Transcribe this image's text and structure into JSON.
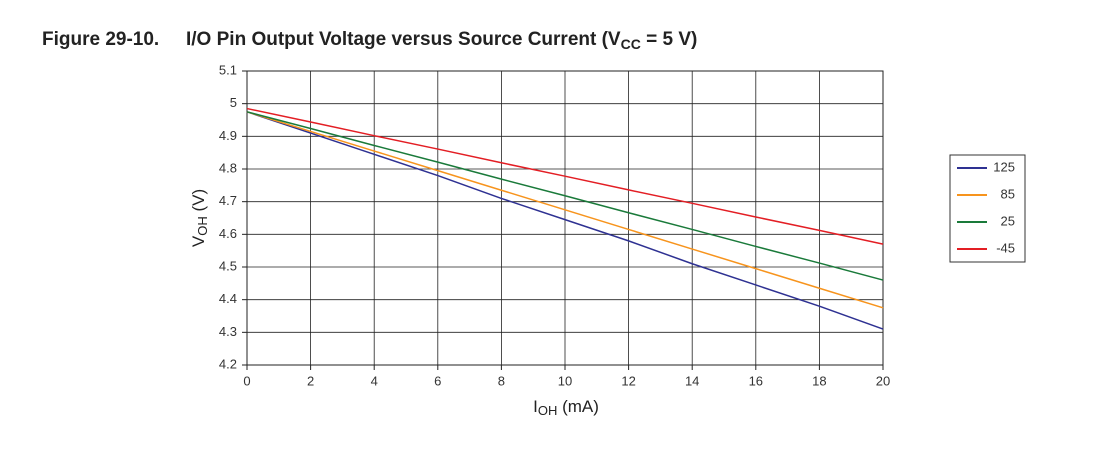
{
  "chart_data": {
    "type": "line",
    "figure_label": "Figure 29-10.",
    "title": [
      "I/O Pin Output Voltage versus Source Current (V",
      "CC",
      " = 5 V)"
    ],
    "y_label": [
      "V",
      "OH",
      " (V)"
    ],
    "x_label": [
      "I",
      "OH",
      " (mA)"
    ],
    "x": [
      0,
      2,
      4,
      6,
      8,
      10,
      12,
      14,
      16,
      18,
      20
    ],
    "xlim": [
      0,
      20
    ],
    "xticks": [
      0,
      2,
      4,
      6,
      8,
      10,
      12,
      14,
      16,
      18,
      20
    ],
    "ylim": [
      4.2,
      5.1
    ],
    "yticks": [
      4.2,
      4.3,
      4.4,
      4.5,
      4.6,
      4.7,
      4.8,
      4.9,
      5,
      5.1
    ],
    "grid": true,
    "legend": "right",
    "series": [
      {
        "name": "125",
        "color": "#2e3192",
        "values": [
          4.975,
          4.91,
          4.845,
          4.78,
          4.71,
          4.645,
          4.58,
          4.51,
          4.445,
          4.38,
          4.31
        ]
      },
      {
        "name": "85",
        "color": "#f7941d",
        "values": [
          4.975,
          4.915,
          4.855,
          4.795,
          4.735,
          4.675,
          4.615,
          4.555,
          4.495,
          4.435,
          4.375
        ]
      },
      {
        "name": "25",
        "color": "#1a7a3a",
        "values": [
          4.975,
          4.924,
          4.872,
          4.821,
          4.769,
          4.718,
          4.666,
          4.615,
          4.563,
          4.512,
          4.46
        ]
      },
      {
        "name": "-45",
        "color": "#e31e24",
        "values": [
          4.985,
          4.944,
          4.902,
          4.861,
          4.819,
          4.778,
          4.736,
          4.695,
          4.653,
          4.612,
          4.57
        ]
      }
    ]
  }
}
